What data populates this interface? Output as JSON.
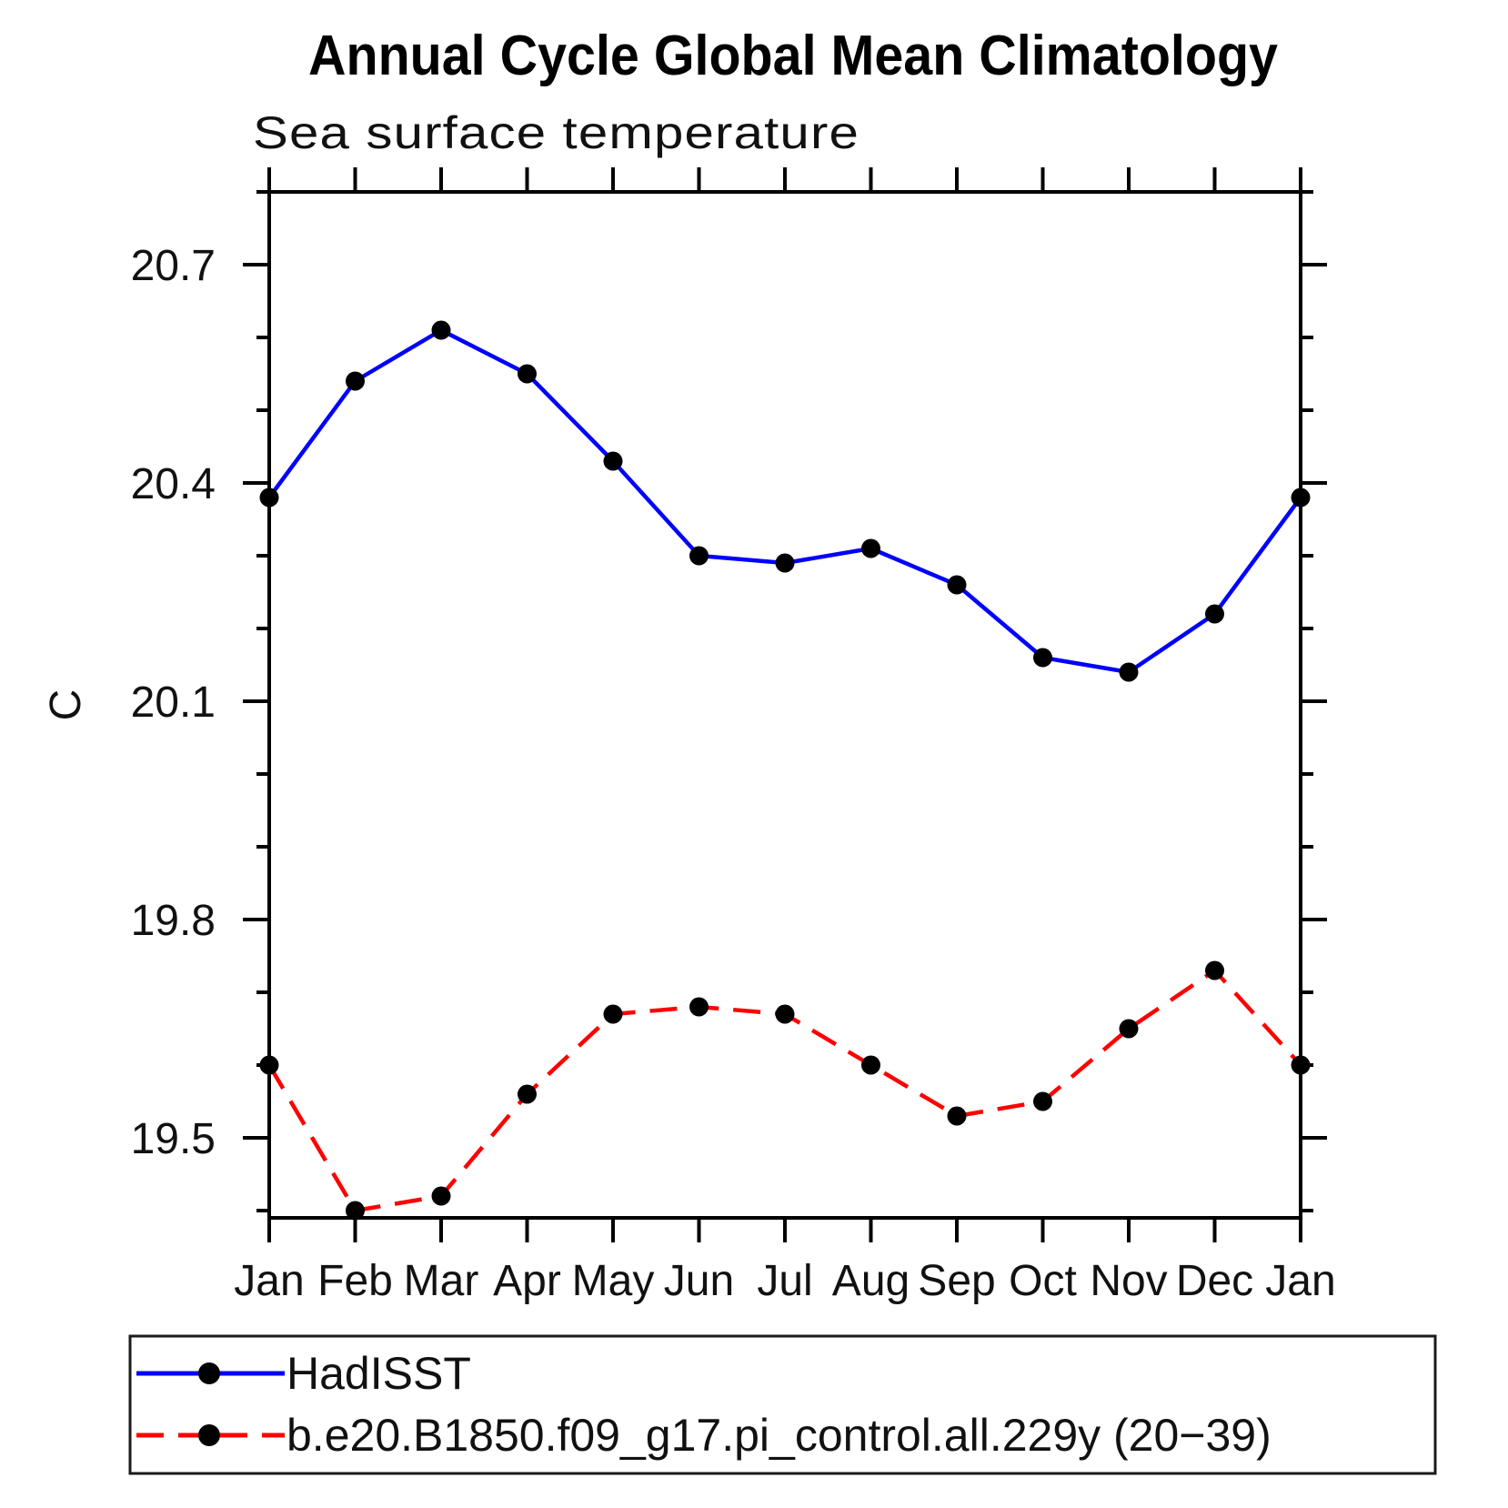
{
  "chart_data": {
    "type": "line",
    "title": "Annual Cycle Global Mean Climatology",
    "subtitle": "Sea surface temperature",
    "ylabel": "C",
    "xlabel": "",
    "categories": [
      "Jan",
      "Feb",
      "Mar",
      "Apr",
      "May",
      "Jun",
      "Jul",
      "Aug",
      "Sep",
      "Oct",
      "Nov",
      "Dec",
      "Jan"
    ],
    "series": [
      {
        "name": "HadISST",
        "color": "#0000ff",
        "line_style": "solid",
        "marker": "filled-circle",
        "marker_color": "#000000",
        "values": [
          20.38,
          20.54,
          20.61,
          20.55,
          20.43,
          20.3,
          20.29,
          20.31,
          20.26,
          20.16,
          20.14,
          20.22,
          20.38
        ]
      },
      {
        "name": "b.e20.B1850.f09_g17.pi_control.all.229y (20−39)",
        "color": "#ff0000",
        "line_style": "dashed",
        "marker": "filled-circle",
        "marker_color": "#000000",
        "values": [
          19.6,
          19.4,
          19.42,
          19.56,
          19.67,
          19.68,
          19.67,
          19.6,
          19.53,
          19.55,
          19.65,
          19.73,
          19.6
        ]
      }
    ],
    "ylim": [
      19.39,
      20.8
    ],
    "yticks_major": [
      19.5,
      19.8,
      20.1,
      20.4,
      20.7
    ],
    "ytick_labels": [
      "19.5",
      "19.8",
      "20.1",
      "20.4",
      "20.7"
    ],
    "ytick_minor_step": 0.1,
    "grid": false,
    "legend_position": "bottom-left"
  }
}
